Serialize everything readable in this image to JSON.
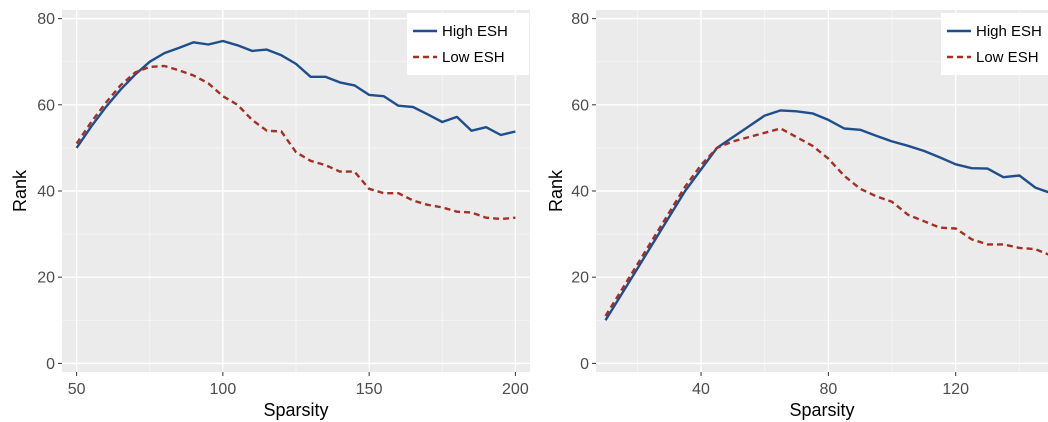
{
  "chart_data": [
    {
      "type": "line",
      "xlabel": "Sparsity",
      "ylabel": "Rank",
      "xlim": [
        45,
        205
      ],
      "ylim": [
        -2,
        82
      ],
      "xticks": [
        50,
        100,
        150,
        200
      ],
      "yticks": [
        0,
        20,
        40,
        60,
        80
      ],
      "grid": true,
      "legend_position": "top-right",
      "series": [
        {
          "name": "High ESH",
          "color": "#1f4e8c",
          "dash": "solid",
          "x": [
            50,
            55,
            60,
            65,
            70,
            75,
            80,
            85,
            90,
            95,
            100,
            105,
            110,
            115,
            120,
            125,
            130,
            135,
            140,
            145,
            150,
            155,
            160,
            165,
            170,
            175,
            180,
            185,
            190,
            195,
            200
          ],
          "y": [
            50,
            55,
            59.5,
            63.5,
            67,
            70,
            72,
            73.2,
            74.5,
            74,
            74.8,
            73.8,
            72.5,
            72.8,
            71.5,
            69.5,
            66.5,
            66.5,
            65.2,
            64.5,
            62.3,
            62,
            59.8,
            59.5,
            57.8,
            56,
            57.2,
            54,
            54.8,
            53,
            53.8
          ]
        },
        {
          "name": "Low ESH",
          "color": "#a33024",
          "dash": "dashed",
          "x": [
            50,
            55,
            60,
            65,
            70,
            75,
            80,
            85,
            90,
            95,
            100,
            105,
            110,
            115,
            120,
            125,
            130,
            135,
            140,
            145,
            150,
            155,
            160,
            165,
            170,
            175,
            180,
            185,
            190,
            195,
            200
          ],
          "y": [
            51,
            56,
            60.5,
            64.5,
            67.5,
            68.8,
            69,
            68,
            66.8,
            65,
            62,
            60,
            56.5,
            54,
            53.8,
            49,
            47,
            46,
            44.5,
            44.5,
            40.5,
            39.5,
            39.5,
            37.8,
            36.8,
            36.2,
            35.2,
            35,
            33.8,
            33.5,
            33.8
          ]
        }
      ]
    },
    {
      "type": "line",
      "xlabel": "Sparsity",
      "ylabel": "Rank",
      "xlim": [
        7,
        149
      ],
      "ylim": [
        -2,
        82
      ],
      "xticks": [
        40,
        80,
        120
      ],
      "yticks": [
        0,
        20,
        40,
        60,
        80
      ],
      "grid": true,
      "legend_position": "top-right",
      "series": [
        {
          "name": "High ESH",
          "color": "#1f4e8c",
          "dash": "solid",
          "x": [
            10,
            15,
            20,
            25,
            30,
            35,
            40,
            45,
            50,
            55,
            60,
            65,
            70,
            75,
            80,
            85,
            90,
            95,
            100,
            105,
            110,
            115,
            120,
            125,
            130,
            135,
            140,
            145,
            150
          ],
          "y": [
            10,
            16,
            22,
            28,
            34,
            40,
            45,
            50,
            52.5,
            55,
            57.5,
            58.7,
            58.5,
            58,
            56.5,
            54.5,
            54.2,
            52.8,
            51.5,
            50.5,
            49.3,
            47.8,
            46.2,
            45.3,
            45.2,
            43.2,
            43.6,
            40.8,
            39.5
          ]
        },
        {
          "name": "Low ESH",
          "color": "#a33024",
          "dash": "dashed",
          "x": [
            10,
            15,
            20,
            25,
            30,
            35,
            40,
            45,
            50,
            55,
            60,
            65,
            70,
            75,
            80,
            85,
            90,
            95,
            100,
            105,
            110,
            115,
            120,
            125,
            130,
            135,
            140,
            145,
            150
          ],
          "y": [
            11,
            17,
            23,
            29,
            35,
            41,
            46,
            50,
            51.5,
            52.5,
            53.5,
            54.5,
            52.5,
            50.5,
            47.5,
            43.5,
            40.5,
            38.8,
            37.5,
            34.5,
            33,
            31.5,
            31.3,
            28.8,
            27.6,
            27.6,
            26.8,
            26.5,
            25
          ]
        }
      ]
    }
  ]
}
